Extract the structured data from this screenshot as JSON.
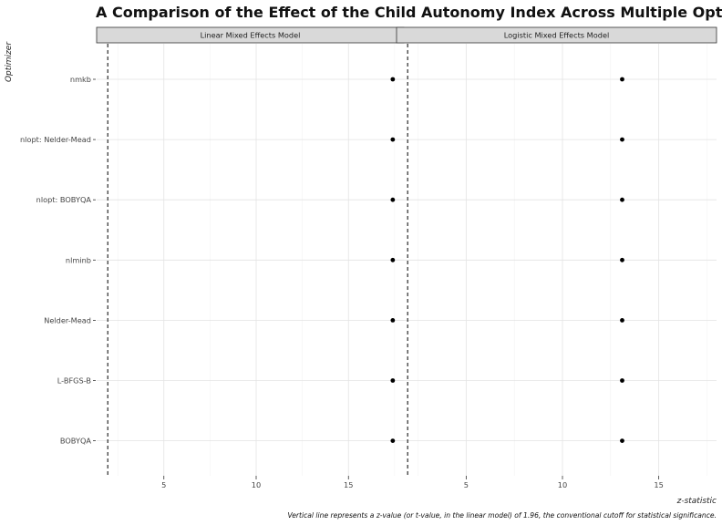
{
  "chart_data": {
    "type": "scatter",
    "title": "A Comparison of the Effect of the Child Autonomy Index Across Multiple Optimizers",
    "ylabel": "Optimizer",
    "xlabel": "z-statistic",
    "caption": "Vertical line represents a z-value (or t-value, in the linear model) of 1.96, the conventional cutoff for statistical significance.",
    "categories": [
      "nmkb",
      "nlopt: Nelder-Mead",
      "nlopt: BOBYQA",
      "nlminb",
      "Nelder-Mead",
      "L-BFGS-B",
      "BOBYQA"
    ],
    "x_ticks": [
      5,
      10,
      15
    ],
    "xlim": [
      2,
      18
    ],
    "reference_line": 1.96,
    "grid": true,
    "panels": [
      {
        "name": "Linear Mixed Effects Model",
        "values": [
          17.4,
          17.4,
          17.4,
          17.4,
          17.4,
          17.4,
          17.4
        ]
      },
      {
        "name": "Logistic Mixed Effects Model",
        "values": [
          13.1,
          13.1,
          13.1,
          13.1,
          13.1,
          13.1,
          13.1
        ]
      }
    ]
  }
}
